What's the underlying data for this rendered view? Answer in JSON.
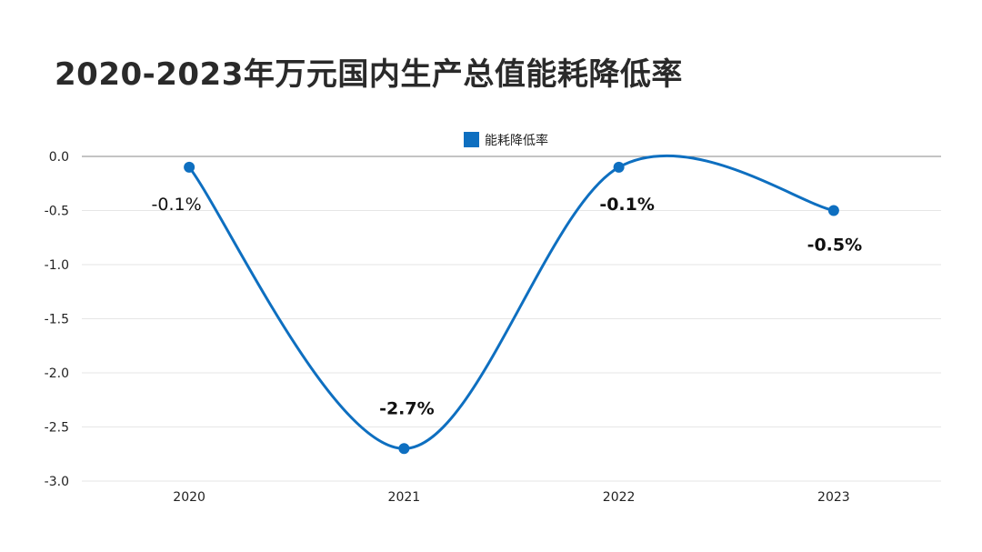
{
  "title": "2020-2023年万元国内生产总值能耗降低率",
  "colors": {
    "series": "#0e6fc0",
    "grid": "#e6e6e6",
    "zero_line": "#888888",
    "text": "#222222"
  },
  "chart_data": {
    "type": "line",
    "title": "2020-2023年万元国内生产总值能耗降低率",
    "xlabel": "",
    "ylabel": "",
    "categories": [
      "2020",
      "2021",
      "2022",
      "2023"
    ],
    "series": [
      {
        "name": "能耗降低率",
        "values": [
          -0.1,
          -2.7,
          -0.1,
          -0.5
        ],
        "labels": [
          "-0.1%",
          "-2.7%",
          "-0.1%",
          "-0.5%"
        ]
      }
    ],
    "ylim": [
      -3.0,
      0.0
    ],
    "yticks": [
      0.0,
      -0.5,
      -1.0,
      -1.5,
      -2.0,
      -2.5,
      -3.0
    ],
    "ytick_labels": [
      "0.0",
      "-0.5",
      "-1.0",
      "-1.5",
      "-2.0",
      "-2.5",
      "-3.0"
    ],
    "grid": true,
    "smooth": true,
    "legend_position": "top-center"
  }
}
